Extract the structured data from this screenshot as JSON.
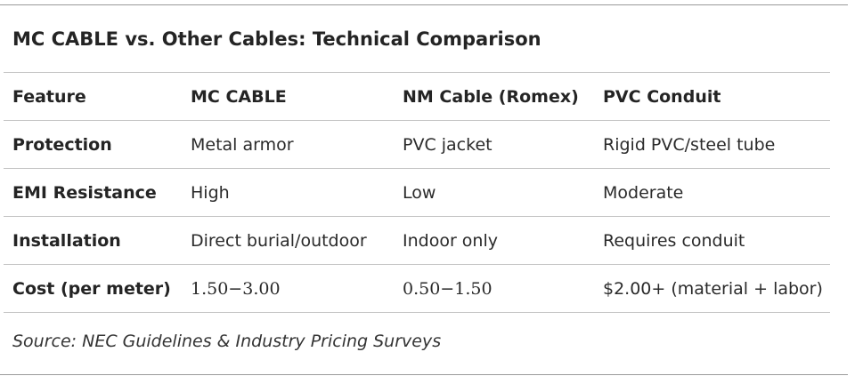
{
  "title": "MC CABLE vs. Other Cables: Technical Comparison",
  "table": {
    "headers": [
      "Feature",
      "MC CABLE",
      "NM Cable (Romex)",
      "PVC Conduit"
    ],
    "rows": [
      [
        "Protection",
        "Metal armor",
        "PVC jacket",
        "Rigid PVC/steel tube"
      ],
      [
        "EMI Resistance",
        "High",
        "Low",
        "Moderate"
      ],
      [
        "Installation",
        "Direct burial/outdoor",
        "Indoor only",
        "Requires conduit"
      ],
      [
        "Cost (per meter)",
        "1.50−3.00",
        "0.50−1.50",
        "$2.00+ (material + labor)"
      ]
    ]
  },
  "source": "Source: NEC Guidelines & Industry Pricing Surveys"
}
